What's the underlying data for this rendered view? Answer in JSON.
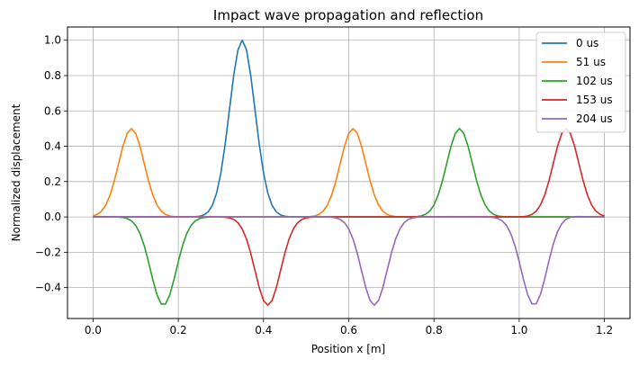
{
  "chart_data": {
    "type": "line",
    "title": "Impact wave propagation and reflection",
    "xlabel": "Position x [m]",
    "ylabel": "Normalized displacement",
    "xlim": [
      -0.06,
      1.26
    ],
    "ylim": [
      -0.575,
      1.075
    ],
    "xticks": [
      0.0,
      0.2,
      0.4,
      0.6,
      0.8,
      1.0,
      1.2
    ],
    "xtick_labels": [
      "0.0",
      "0.2",
      "0.4",
      "0.6",
      "0.8",
      "1.0",
      "1.2"
    ],
    "yticks": [
      -0.4,
      -0.2,
      0.0,
      0.2,
      0.4,
      0.6,
      0.8,
      1.0
    ],
    "ytick_labels": [
      "−0.4",
      "−0.2",
      "0.0",
      "0.2",
      "0.4",
      "0.6",
      "0.8",
      "1.0"
    ],
    "grid": true,
    "legend_position": "top-right",
    "pulse_width_m": 0.03,
    "series": [
      {
        "name": "0 us",
        "color": "#1f77b4",
        "pulses": [
          {
            "center": 0.35,
            "amplitude": 1.0
          }
        ]
      },
      {
        "name": "51 us",
        "color": "#ff7f0e",
        "pulses": [
          {
            "center": 0.09,
            "amplitude": 0.5
          },
          {
            "center": 0.61,
            "amplitude": 0.5
          }
        ]
      },
      {
        "name": "102 us",
        "color": "#2ca02c",
        "pulses": [
          {
            "center": 0.165,
            "amplitude": -0.5
          },
          {
            "center": 0.86,
            "amplitude": 0.5
          }
        ]
      },
      {
        "name": "153 us",
        "color": "#d62728",
        "pulses": [
          {
            "center": 0.41,
            "amplitude": -0.5
          },
          {
            "center": 1.11,
            "amplitude": 0.5
          }
        ]
      },
      {
        "name": "204 us",
        "color": "#9467bd",
        "pulses": [
          {
            "center": 0.66,
            "amplitude": -0.5
          },
          {
            "center": 1.095,
            "amplitude": 0.01
          },
          {
            "center": 1.035,
            "amplitude": -0.5
          }
        ]
      }
    ],
    "x_samples": {
      "start": 0.0,
      "end": 1.2,
      "count": 121
    }
  }
}
